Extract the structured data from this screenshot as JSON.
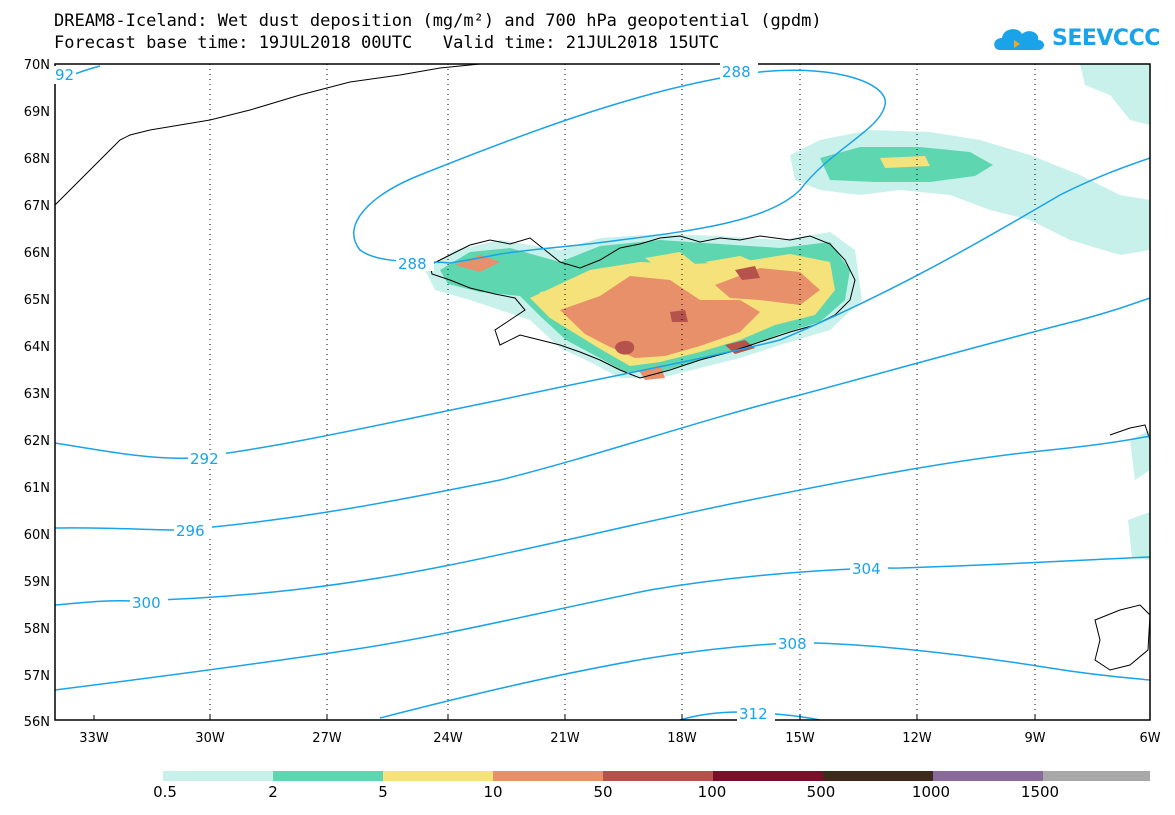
{
  "header": {
    "title_line1": "DREAM8-Iceland: Wet dust deposition (mg/m²) and 700 hPa geopotential (gpdm)",
    "title_line2": "Forecast base time: 19JUL2018 00UTC   Valid time: 21JUL2018 15UTC"
  },
  "logo": {
    "text": "SEEVCCC",
    "color": "#1aa3e8"
  },
  "map": {
    "lat_labels": [
      "70N",
      "69N",
      "68N",
      "67N",
      "66N",
      "65N",
      "64N",
      "63N",
      "62N",
      "61N",
      "60N",
      "59N",
      "58N",
      "57N",
      "56N"
    ],
    "lon_labels": [
      "33W",
      "30W",
      "27W",
      "24W",
      "21W",
      "18W",
      "15W",
      "12W",
      "9W",
      "6W"
    ],
    "contour_labels": [
      "92",
      "288",
      "288",
      "292",
      "296",
      "300",
      "304",
      "308",
      "312"
    ],
    "contour_color": "#1aa3e8"
  },
  "legend": {
    "ticks": [
      "0.5",
      "2",
      "5",
      "10",
      "50",
      "100",
      "500",
      "1000",
      "1500"
    ],
    "colors": [
      "#c8f1ec",
      "#5ed7b0",
      "#f5e27a",
      "#e7906a",
      "#b5524b",
      "#7a0f2a",
      "#3d2a1a",
      "#8a6a9a",
      "#a8a8a8"
    ]
  }
}
